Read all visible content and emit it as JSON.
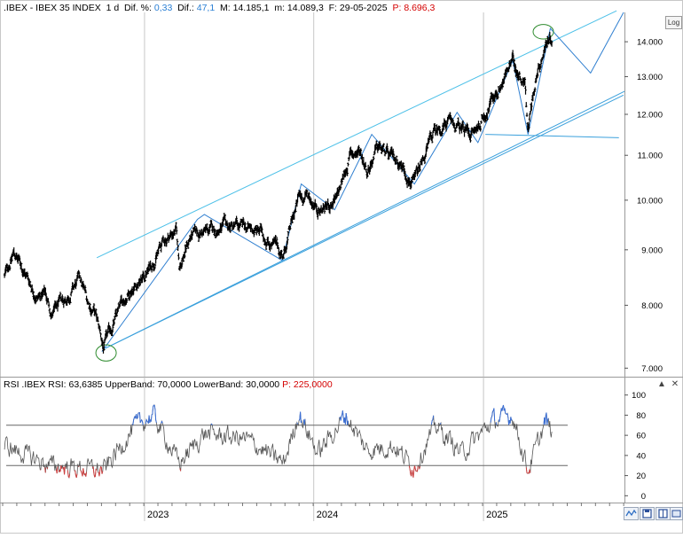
{
  "header": {
    "symbol": ".IBEX - IBEX 35 INDEX",
    "timeframe": "1 d",
    "dif_pct_label": "Dif. %:",
    "dif_pct": "0,33",
    "dif_label": "Dif.:",
    "dif": "47,1",
    "max_label": "M:",
    "max": "14.185,1",
    "min_label": "m:",
    "min": "14.089,3",
    "date_label": "F:",
    "date": "29-05-2025",
    "p_label": "P:",
    "p_value": "8.696,3"
  },
  "rsi_header": {
    "text": "RSI .IBEX RSI: 63,6385 UpperBand: 70,0000 LowerBand: 30,0000",
    "p_text": "P: 225,0000"
  },
  "log_label": "Log",
  "controls": {
    "up": "▲",
    "close": "✕"
  },
  "colors": {
    "price": "#000000",
    "trendline": "#3aa0dc",
    "wave": "#2f7fd0",
    "channel": "#4cc0e8",
    "ellipse": "#2e8b2e",
    "rsi_line": "#555555",
    "rsi_over": "#3b6fd6",
    "rsi_under": "#d04040",
    "band": "#666666"
  },
  "chart_data": [
    {
      "type": "line",
      "title": "",
      "series": [
        {
          "name": ".IBEX - IBEX 35 INDEX",
          "kind": "ohlc"
        }
      ],
      "y_scale": "log",
      "ylim": [
        6900,
        14900
      ],
      "y_ticks": [
        7000,
        8000,
        9000,
        10000,
        11000,
        12000,
        13000,
        14000
      ],
      "y_tick_labels": [
        "7.000",
        "8.000",
        "9.000",
        "10.000",
        "11.000",
        "12.000",
        "13.000",
        "14.000"
      ],
      "x_tick_labels": [
        "2023",
        "2024",
        "2025"
      ],
      "x_range": [
        "2022-03",
        "2025-11"
      ],
      "x_ticks": [
        "2023-01",
        "2024-01",
        "2025-01"
      ],
      "anchors": [
        [
          "2022-03-05",
          8500
        ],
        [
          "2022-03-25",
          8950
        ],
        [
          "2022-04-20",
          8550
        ],
        [
          "2022-05-15",
          8150
        ],
        [
          "2022-06-01",
          8200
        ],
        [
          "2022-06-15",
          7850
        ],
        [
          "2022-07-15",
          8100
        ],
        [
          "2022-08-15",
          8450
        ],
        [
          "2022-09-01",
          8050
        ],
        [
          "2022-09-15",
          7900
        ],
        [
          "2022-10-05",
          7300
        ],
        [
          "2022-11-01",
          7800
        ],
        [
          "2022-12-01",
          8300
        ],
        [
          "2023-01-01",
          8500
        ],
        [
          "2023-02-15",
          9200
        ],
        [
          "2023-03-10",
          9400
        ],
        [
          "2023-03-17",
          8700
        ],
        [
          "2023-04-10",
          9250
        ],
        [
          "2023-05-10",
          9350
        ],
        [
          "2023-06-10",
          9400
        ],
        [
          "2023-07-10",
          9450
        ],
        [
          "2023-08-10",
          9400
        ],
        [
          "2023-09-10",
          9350
        ],
        [
          "2023-10-28",
          8900
        ],
        [
          "2023-11-30",
          10050
        ],
        [
          "2023-12-20",
          10100
        ],
        [
          "2024-01-15",
          9800
        ],
        [
          "2024-02-20",
          10000
        ],
        [
          "2024-03-20",
          11000
        ],
        [
          "2024-04-10",
          11100
        ],
        [
          "2024-04-25",
          10700
        ],
        [
          "2024-05-20",
          11200
        ],
        [
          "2024-06-15",
          10900
        ],
        [
          "2024-07-01",
          10900
        ],
        [
          "2024-08-05",
          10350
        ],
        [
          "2024-09-15",
          11500
        ],
        [
          "2024-10-15",
          11800
        ],
        [
          "2024-11-15",
          11600
        ],
        [
          "2024-12-15",
          11550
        ],
        [
          "2025-01-20",
          12400
        ],
        [
          "2025-03-05",
          13400
        ],
        [
          "2025-04-01",
          12900
        ],
        [
          "2025-04-07",
          11600
        ],
        [
          "2025-04-25",
          13100
        ],
        [
          "2025-05-20",
          14100
        ],
        [
          "2025-05-29",
          14137
        ]
      ],
      "trendlines": [
        [
          [
            "2022-09-20",
            8850
          ],
          [
            "2025-10-15",
            14950
          ]
        ],
        [
          [
            "2022-10-08",
            7300
          ],
          [
            "2025-11-01",
            12600
          ]
        ],
        [
          [
            "2022-10-08",
            7300
          ],
          [
            "2025-10-30",
            12500
          ]
        ],
        [
          [
            "2025-01-05",
            11500
          ],
          [
            "2025-10-20",
            11420
          ]
        ]
      ],
      "wave_path": [
        [
          "2022-10-01",
          7250
        ],
        [
          "2023-04-25",
          9600
        ],
        [
          "2023-05-10",
          9700
        ],
        [
          "2023-10-25",
          8800
        ],
        [
          "2023-12-05",
          10350
        ],
        [
          "2024-02-15",
          9800
        ],
        [
          "2024-05-05",
          11500
        ],
        [
          "2024-08-05",
          10350
        ],
        [
          "2024-11-05",
          12050
        ],
        [
          "2024-12-20",
          11300
        ],
        [
          "2025-03-05",
          13450
        ],
        [
          "2025-04-07",
          11500
        ],
        [
          "2025-05-25",
          14400
        ],
        [
          "2025-08-20",
          13100
        ],
        [
          "2025-10-30",
          14900
        ]
      ],
      "ellipses": [
        {
          "center": [
            "2022-10-10",
            7230
          ],
          "rx_days": 22,
          "ry_ratio": 0.045
        },
        {
          "center": [
            "2025-05-10",
            14300
          ],
          "rx_days": 22,
          "ry_ratio": 0.04
        }
      ]
    },
    {
      "type": "line",
      "title": "",
      "series": [
        {
          "name": "RSI",
          "value_last": 63.6385
        }
      ],
      "ylim": [
        -5,
        105
      ],
      "y_ticks": [
        0,
        20,
        40,
        60,
        80,
        100
      ],
      "y_tick_labels": [
        "0",
        "20",
        "40",
        "60",
        "80",
        "100"
      ],
      "upper_band": 70,
      "lower_band": 30,
      "anchors": [
        [
          "2022-03-05",
          50
        ],
        [
          "2022-06-10",
          30
        ],
        [
          "2022-10-05",
          25
        ],
        [
          "2022-12-10",
          68
        ],
        [
          "2023-01-20",
          80
        ],
        [
          "2023-03-17",
          32
        ],
        [
          "2023-05-10",
          62
        ],
        [
          "2023-08-10",
          56
        ],
        [
          "2023-10-28",
          32
        ],
        [
          "2023-11-30",
          82
        ],
        [
          "2024-01-10",
          42
        ],
        [
          "2024-03-10",
          80
        ],
        [
          "2024-04-25",
          45
        ],
        [
          "2024-06-20",
          50
        ],
        [
          "2024-08-05",
          28
        ],
        [
          "2024-09-20",
          70
        ],
        [
          "2024-11-15",
          42
        ],
        [
          "2025-01-20",
          74
        ],
        [
          "2025-03-05",
          80
        ],
        [
          "2025-04-07",
          25
        ],
        [
          "2025-05-15",
          74
        ],
        [
          "2025-05-29",
          63.6385
        ]
      ]
    }
  ]
}
